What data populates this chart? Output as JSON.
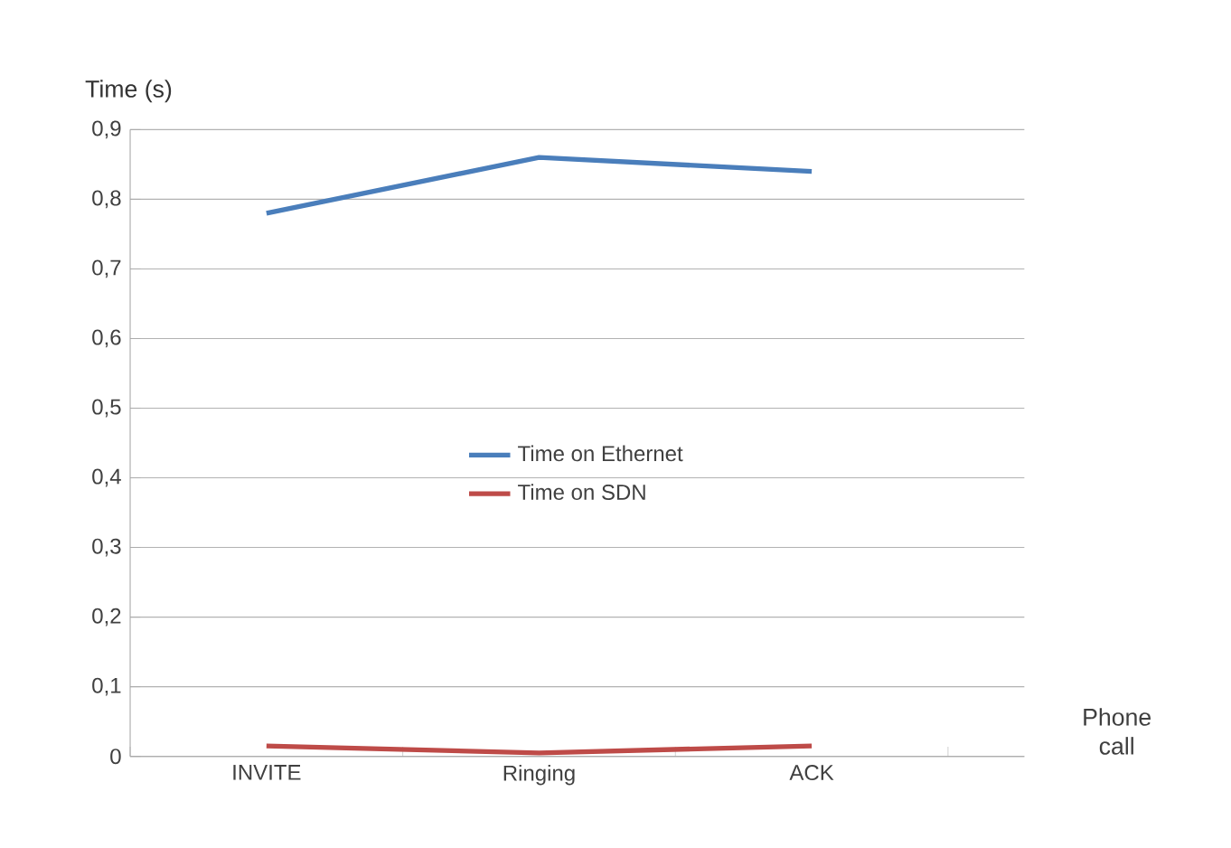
{
  "chart_data": {
    "type": "line",
    "ylabel": "Time (s)",
    "xlabel": "Phone call",
    "categories": [
      "INVITE",
      "Ringing",
      "ACK"
    ],
    "series": [
      {
        "name": "Time on Ethernet",
        "color": "#4a7ebb",
        "values": [
          0.78,
          0.86,
          0.84
        ]
      },
      {
        "name": "Time on SDN",
        "color": "#be4b48",
        "values": [
          0.015,
          0.005,
          0.015
        ]
      }
    ],
    "ylim": [
      0,
      0.9
    ],
    "yticks": [
      {
        "value": 0,
        "label": "0"
      },
      {
        "value": 0.1,
        "label": "0,1"
      },
      {
        "value": 0.2,
        "label": "0,2"
      },
      {
        "value": 0.3,
        "label": "0,3"
      },
      {
        "value": 0.4,
        "label": "0,4"
      },
      {
        "value": 0.5,
        "label": "0,5"
      },
      {
        "value": 0.6,
        "label": "0,6"
      },
      {
        "value": 0.7,
        "label": "0,7"
      },
      {
        "value": 0.8,
        "label": "0,8"
      },
      {
        "value": 0.9,
        "label": "0,9"
      }
    ],
    "grid": "y",
    "legend": "center",
    "marker": "none",
    "line_style": "solid"
  }
}
